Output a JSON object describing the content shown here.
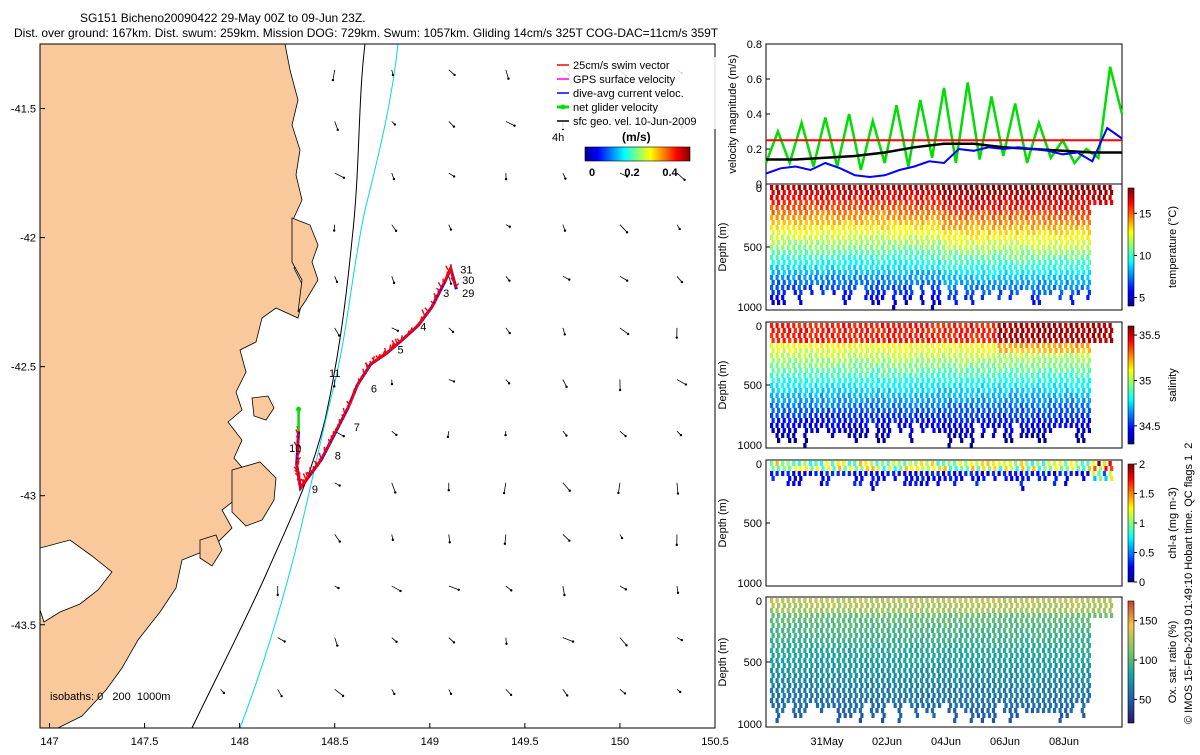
{
  "header": {
    "title_line": "SG151 Bicheno20090422 29-May 00Z to 09-Jun 23Z.",
    "stats_line": "Dist. over ground: 167km. Dist. swum: 259km. Mission DOG: 729km. Swum: 1057km. Gliding 14cm/s 325T COG-DAC=11cm/s 359T"
  },
  "colors": {
    "land": "#f9c89b",
    "swim_vector": "#ff0000",
    "gps_velocity": "#ff00ff",
    "dive_avg_current": "#0000ff",
    "net_velocity": "#00dd00",
    "sfc_geo": "#000000",
    "isobath_200": "#00d8e8",
    "isobath_1000": "#000000"
  },
  "chart_data": [
    {
      "id": "map",
      "type": "scatter",
      "title": "",
      "xlabel": "",
      "ylabel": "",
      "xlim": [
        146.95,
        150.5
      ],
      "ylim": [
        -43.9,
        -41.25
      ],
      "x_ticks": [
        147,
        147.5,
        148,
        148.5,
        149,
        149.5,
        150,
        150.5
      ],
      "x_tick_labels": [
        "147",
        "147.5",
        "148",
        "148.5",
        "149",
        "149.5",
        "150",
        "150.5"
      ],
      "y_ticks": [
        -41.5,
        -42,
        -42.5,
        -43,
        -43.5
      ],
      "y_tick_labels": [
        "-41.5",
        "-42",
        "-42.5",
        "-43",
        "-43.5"
      ],
      "legend": {
        "position": "top-right",
        "entries": [
          {
            "label": "25cm/s swim vector",
            "color": "#ff0000"
          },
          {
            "label": "GPS surface velocity",
            "color": "#ff00ff"
          },
          {
            "label": "dive-avg current veloc.",
            "color": "#0000ff"
          },
          {
            "label": "net glider velocity",
            "color": "#00dd00"
          },
          {
            "label": "sfc geo. vel. 10-Jun-2009",
            "color": "#000000"
          }
        ]
      },
      "colorbar": {
        "title": "(m/s)",
        "ticks": [
          "0",
          "0.2",
          "0.4"
        ],
        "range": [
          0,
          0.5
        ]
      },
      "corner_label": "4h",
      "isobath_label": "isobaths: 0   200  1000m",
      "track": [
        {
          "lon": 148.31,
          "lat": -42.75
        },
        {
          "lon": 148.3,
          "lat": -42.88
        },
        {
          "lon": 148.32,
          "lat": -42.97
        },
        {
          "lon": 148.36,
          "lat": -42.93
        },
        {
          "lon": 148.43,
          "lat": -42.86
        },
        {
          "lon": 148.5,
          "lat": -42.76
        },
        {
          "lon": 148.57,
          "lat": -42.66
        },
        {
          "lon": 148.62,
          "lat": -42.57
        },
        {
          "lon": 148.69,
          "lat": -42.49
        },
        {
          "lon": 148.77,
          "lat": -42.45
        },
        {
          "lon": 148.85,
          "lat": -42.4
        },
        {
          "lon": 148.94,
          "lat": -42.34
        },
        {
          "lon": 149.01,
          "lat": -42.27
        },
        {
          "lon": 149.08,
          "lat": -42.17
        },
        {
          "lon": 149.11,
          "lat": -42.12
        },
        {
          "lon": 149.14,
          "lat": -42.2
        }
      ],
      "day_labels": [
        {
          "text": "31",
          "lon": 149.16,
          "lat": -42.14
        },
        {
          "text": "30",
          "lon": 149.17,
          "lat": -42.18
        },
        {
          "text": "29",
          "lon": 149.17,
          "lat": -42.23
        },
        {
          "text": "3",
          "lon": 149.07,
          "lat": -42.23
        },
        {
          "text": "4",
          "lon": 148.95,
          "lat": -42.36
        },
        {
          "text": "5",
          "lon": 148.83,
          "lat": -42.45
        },
        {
          "text": "11",
          "lon": 148.47,
          "lat": -42.54
        },
        {
          "text": "6",
          "lon": 148.69,
          "lat": -42.6
        },
        {
          "text": "7",
          "lon": 148.6,
          "lat": -42.75
        },
        {
          "text": "10",
          "lon": 148.26,
          "lat": -42.83
        },
        {
          "text": "8",
          "lon": 148.5,
          "lat": -42.86
        },
        {
          "text": "9",
          "lon": 148.38,
          "lat": -42.99
        }
      ],
      "surface_current_field": {
        "lon": [
          147.3,
          147.6,
          147.9,
          148.2,
          148.5,
          148.8,
          149.1,
          149.4,
          149.7,
          150.0,
          150.3
        ],
        "lat": [
          -41.35,
          -41.55,
          -41.75,
          -41.95,
          -42.15,
          -42.35,
          -42.55,
          -42.75,
          -42.95,
          -43.15,
          -43.35,
          -43.55,
          -43.75
        ],
        "speed_ms": 0.1
      }
    },
    {
      "id": "velocity",
      "type": "line",
      "title": "",
      "xlabel": "",
      "ylabel": "velocity magnitude (m/s)",
      "ylim": [
        0,
        0.8
      ],
      "y_ticks": [
        "0",
        "0.2",
        "0.4",
        "0.6",
        "0.8"
      ],
      "x_range_days": [
        0,
        12
      ],
      "series": [
        {
          "name": "25cm/s swim vector",
          "color": "#ff0000",
          "x": [
            0,
            12
          ],
          "values": [
            0.25,
            0.25
          ]
        },
        {
          "name": "sfc geo. vel.",
          "color": "#000000",
          "x": [
            0,
            1,
            2,
            3,
            4,
            5,
            6,
            7,
            8,
            9,
            10,
            11,
            12
          ],
          "values": [
            0.14,
            0.14,
            0.15,
            0.16,
            0.18,
            0.21,
            0.23,
            0.23,
            0.21,
            0.2,
            0.19,
            0.18,
            0.18
          ]
        },
        {
          "name": "dive-avg current veloc.",
          "color": "#0000ff",
          "x": [
            0,
            0.5,
            1,
            1.5,
            2,
            2.5,
            3,
            3.5,
            4,
            4.5,
            5,
            5.5,
            6,
            6.5,
            7,
            7.5,
            8,
            8.5,
            9,
            9.5,
            10,
            10.5,
            11,
            11.5,
            12
          ],
          "values": [
            0.06,
            0.09,
            0.1,
            0.08,
            0.12,
            0.09,
            0.05,
            0.04,
            0.05,
            0.08,
            0.1,
            0.13,
            0.12,
            0.2,
            0.19,
            0.21,
            0.2,
            0.21,
            0.2,
            0.19,
            0.17,
            0.18,
            0.13,
            0.32,
            0.26
          ]
        },
        {
          "name": "net glider velocity",
          "color": "#00dd00",
          "x": [
            0,
            0.4,
            0.8,
            1.2,
            1.6,
            2,
            2.4,
            2.8,
            3.2,
            3.6,
            4,
            4.4,
            4.8,
            5.2,
            5.6,
            6,
            6.4,
            6.8,
            7.2,
            7.6,
            8,
            8.4,
            8.8,
            9.2,
            9.6,
            10,
            10.4,
            10.8,
            11.2,
            11.6,
            12
          ],
          "values": [
            0.12,
            0.3,
            0.12,
            0.35,
            0.1,
            0.38,
            0.1,
            0.4,
            0.08,
            0.36,
            0.12,
            0.45,
            0.1,
            0.48,
            0.15,
            0.55,
            0.12,
            0.58,
            0.14,
            0.5,
            0.16,
            0.46,
            0.12,
            0.35,
            0.15,
            0.25,
            0.12,
            0.2,
            0.15,
            0.67,
            0.4
          ]
        }
      ]
    },
    {
      "id": "temperature",
      "type": "heatmap",
      "ylabel": "Depth (m)",
      "y_ticks": [
        "0",
        "500",
        "1000"
      ],
      "colorbar_label": "temperature (°C)",
      "colorbar_ticks": [
        "5",
        "10",
        "15"
      ],
      "colorbar_range": [
        4,
        18
      ]
    },
    {
      "id": "salinity",
      "type": "heatmap",
      "ylabel": "Depth (m)",
      "y_ticks": [
        "0",
        "500",
        "1000"
      ],
      "colorbar_label": "salinity",
      "colorbar_ticks": [
        "34.5",
        "35",
        "35.5"
      ],
      "colorbar_range": [
        34.3,
        35.6
      ]
    },
    {
      "id": "chla",
      "type": "heatmap",
      "ylabel": "Depth (m)",
      "y_ticks": [
        "0",
        "500",
        "1000"
      ],
      "colorbar_label": "chl-a (mg m-3)",
      "colorbar_ticks": [
        "0",
        "0.5",
        "1",
        "1.5",
        "2"
      ],
      "colorbar_range": [
        0,
        2
      ]
    },
    {
      "id": "oxygen",
      "type": "heatmap",
      "ylabel": "Depth (m)",
      "y_ticks": [
        "0",
        "500",
        "1000"
      ],
      "colorbar_label": "Ox. sat. ratio (%)",
      "colorbar_ticks": [
        "50",
        "100",
        "150"
      ],
      "colorbar_range": [
        20,
        175
      ],
      "x_tick_labels": [
        "31May",
        "02Jun",
        "04Jun",
        "06Jun",
        "08Jun"
      ]
    }
  ],
  "footer": {
    "vertical_credit": "© IMOS 15-Feb-2019 01:49:10 Hobart time. QC flags 1  2"
  }
}
